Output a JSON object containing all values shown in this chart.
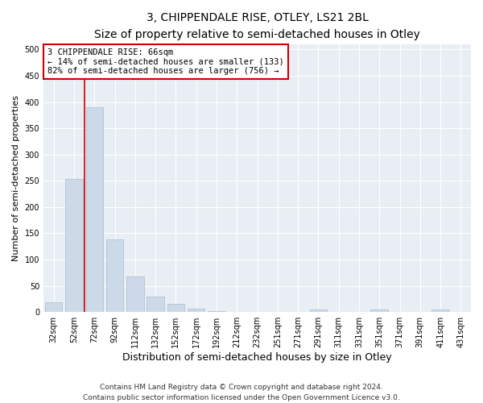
{
  "title": "3, CHIPPENDALE RISE, OTLEY, LS21 2BL",
  "subtitle": "Size of property relative to semi-detached houses in Otley",
  "xlabel": "Distribution of semi-detached houses by size in Otley",
  "ylabel": "Number of semi-detached properties",
  "bar_labels": [
    "32sqm",
    "52sqm",
    "72sqm",
    "92sqm",
    "112sqm",
    "132sqm",
    "152sqm",
    "172sqm",
    "192sqm",
    "212sqm",
    "232sqm",
    "251sqm",
    "271sqm",
    "291sqm",
    "311sqm",
    "331sqm",
    "351sqm",
    "371sqm",
    "391sqm",
    "411sqm",
    "431sqm"
  ],
  "bar_values": [
    18,
    253,
    390,
    138,
    68,
    30,
    15,
    6,
    2,
    0,
    0,
    0,
    0,
    5,
    0,
    0,
    5,
    0,
    0,
    5,
    0
  ],
  "bar_color": "#ccd9e8",
  "bar_edgecolor": "#aabcce",
  "vline_x": 1.5,
  "vline_color": "#cc0000",
  "annotation_text": "3 CHIPPENDALE RISE: 66sqm\n← 14% of semi-detached houses are smaller (133)\n82% of semi-detached houses are larger (756) →",
  "annotation_box_color": "#ffffff",
  "annotation_box_edgecolor": "#cc0000",
  "ylim": [
    0,
    510
  ],
  "yticks": [
    0,
    50,
    100,
    150,
    200,
    250,
    300,
    350,
    400,
    450,
    500
  ],
  "footer": "Contains HM Land Registry data © Crown copyright and database right 2024.\nContains public sector information licensed under the Open Government Licence v3.0.",
  "plot_bg_color": "#e8eef4",
  "title_fontsize": 10,
  "subtitle_fontsize": 9,
  "xlabel_fontsize": 9,
  "ylabel_fontsize": 8,
  "tick_fontsize": 7,
  "annotation_fontsize": 7.5,
  "footer_fontsize": 6.5
}
